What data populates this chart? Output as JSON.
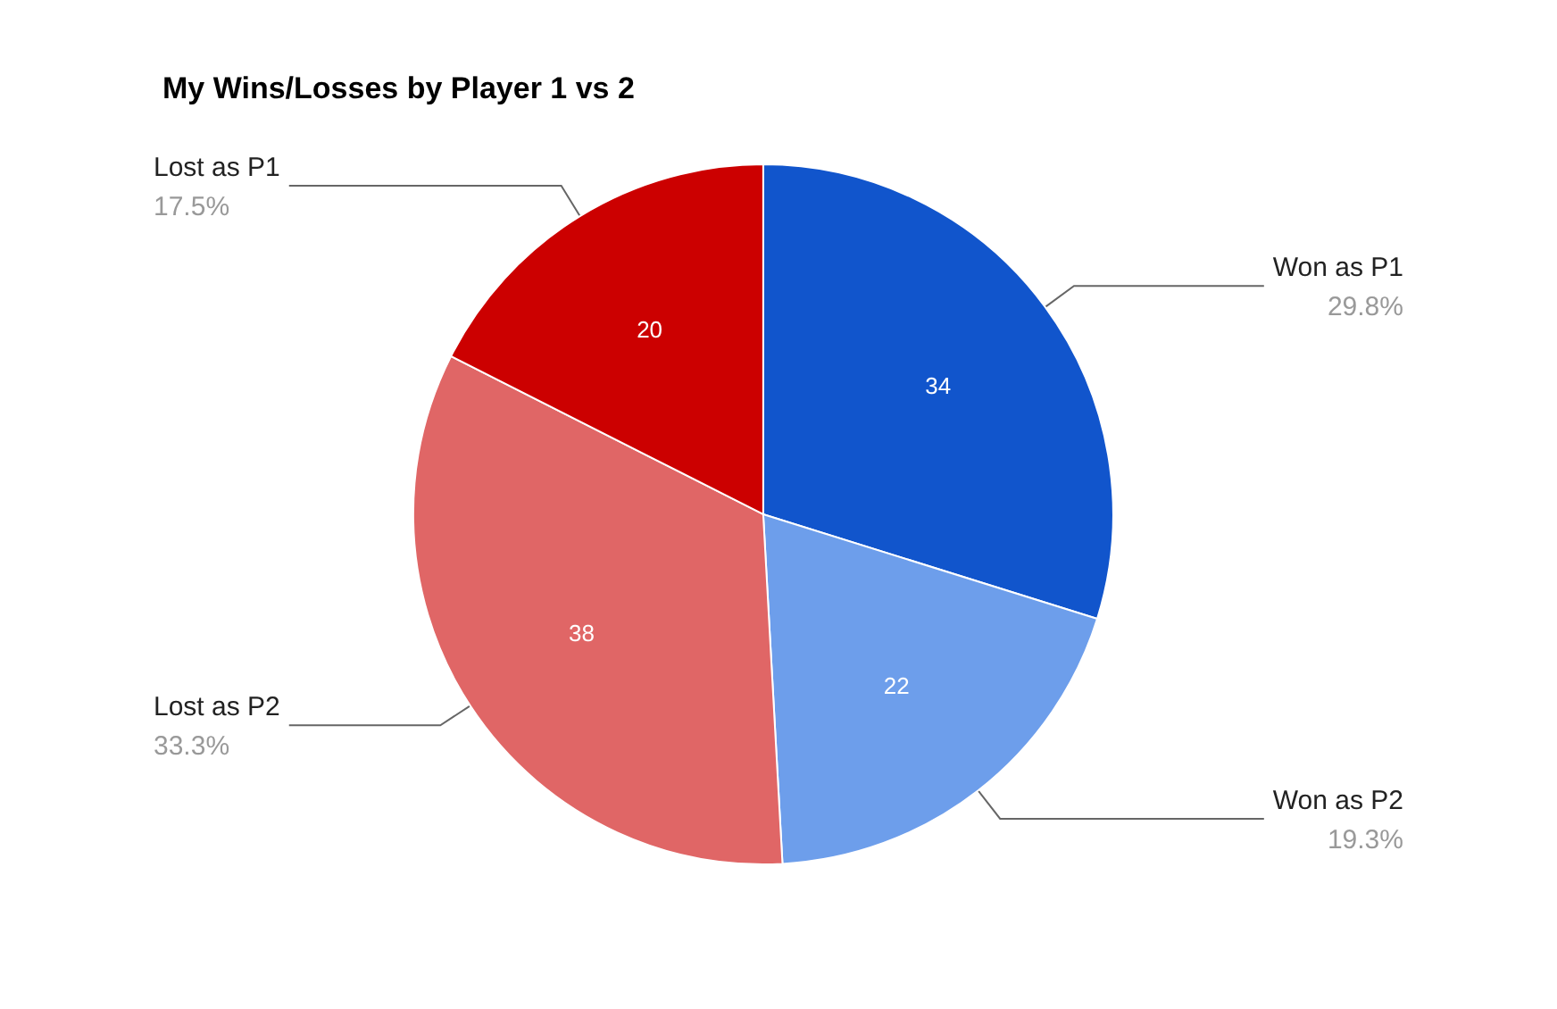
{
  "chart_data": {
    "type": "pie",
    "title": "My Wins/Losses by Player 1 vs 2",
    "categories": [
      "Won as P1",
      "Won as P2",
      "Lost as P2",
      "Lost as P1"
    ],
    "values": [
      34,
      22,
      38,
      20
    ],
    "annotations": [
      "29.8%",
      "19.3%",
      "33.3%",
      "17.5%"
    ],
    "colors": [
      "#1155cc",
      "#6d9eeb",
      "#e06666",
      "#cc0000"
    ],
    "data_labels": true,
    "legend": false
  }
}
